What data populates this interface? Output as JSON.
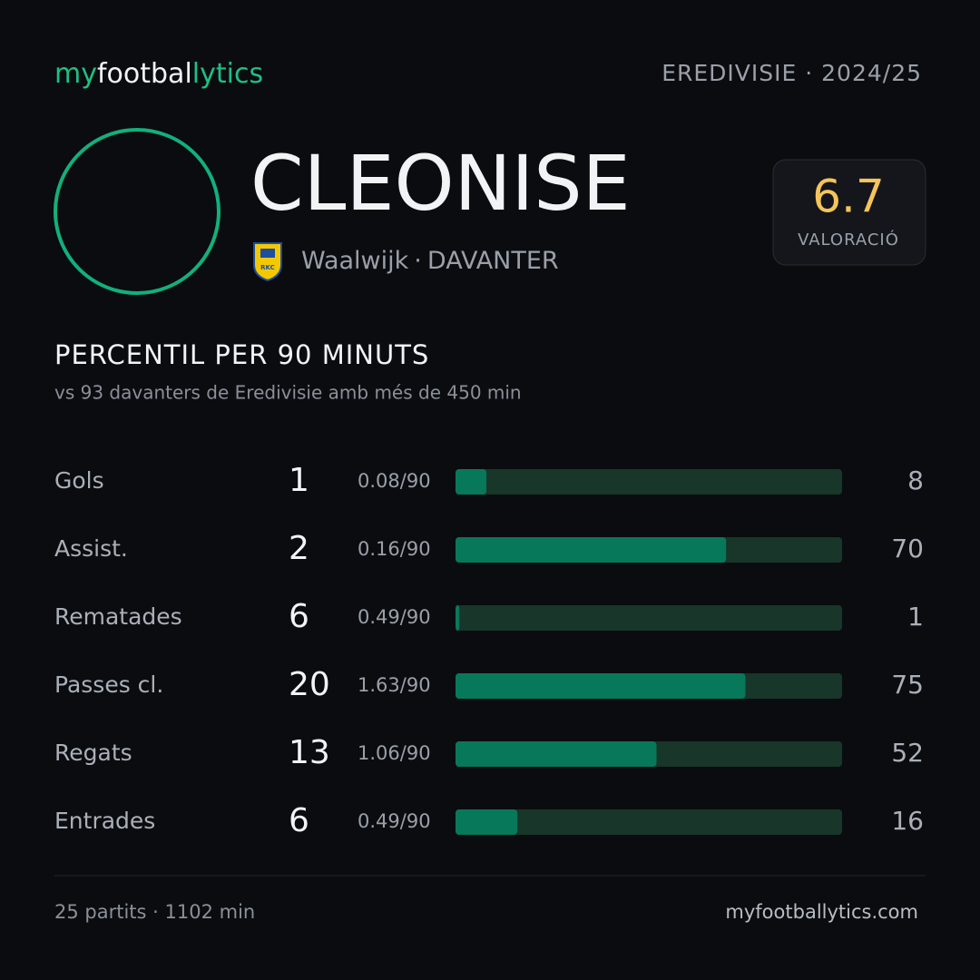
{
  "header": {
    "logo": [
      "my",
      "footbal",
      "lytics"
    ],
    "league": "EREDIVISIE · 2024/25"
  },
  "player": {
    "name": "CLEONISE",
    "team": "Waalwijk",
    "position": "DAVANTER",
    "badge": "RKC"
  },
  "rating": {
    "value": 6.7,
    "label": "VALORACIÓ"
  },
  "section": {
    "title": "PERCENTIL PER 90 MINUTS",
    "subtitle": "vs 93 davanters de Eredivisie amb més de 450 min"
  },
  "stats": {
    "xlim": [
      0,
      100
    ],
    "rows": [
      {
        "label": "Gols",
        "count": 1,
        "per90": "0.08/90",
        "percentile": 8
      },
      {
        "label": "Assist.",
        "count": 2,
        "per90": "0.16/90",
        "percentile": 70
      },
      {
        "label": "Rematades",
        "count": 6,
        "per90": "0.49/90",
        "percentile": 1
      },
      {
        "label": "Passes cl.",
        "count": 20,
        "per90": "1.63/90",
        "percentile": 75
      },
      {
        "label": "Regats",
        "count": 13,
        "per90": "1.06/90",
        "percentile": 52
      },
      {
        "label": "Entrades",
        "count": 6,
        "per90": "0.49/90",
        "percentile": 16
      }
    ]
  },
  "footer": {
    "summary": "25 partits · 1102 min",
    "site": "myfootballytics.com"
  }
}
